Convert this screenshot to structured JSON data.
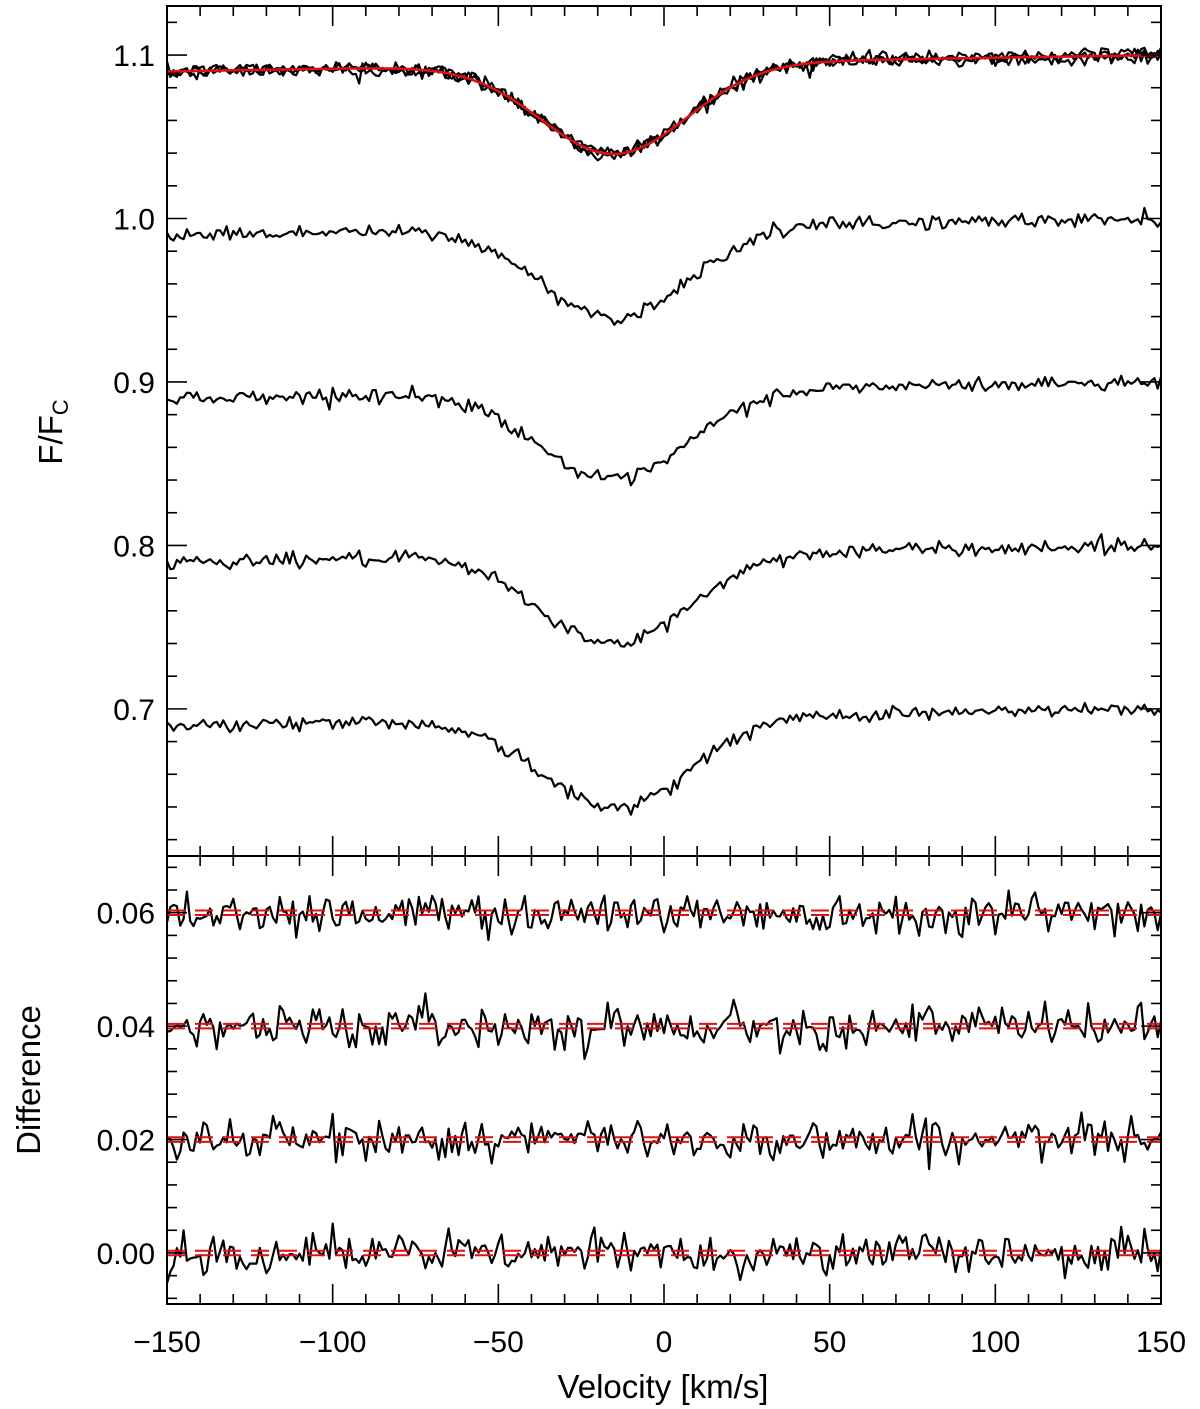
{
  "chart_data": [
    {
      "type": "line",
      "panel": "top",
      "ylabel": "F/F",
      "ylabel_subscript": "C",
      "xlim": [
        -150,
        150
      ],
      "ylim": [
        0.61,
        1.13
      ],
      "yticks": [
        0.7,
        0.8,
        0.9,
        1.0,
        1.1
      ],
      "ytick_labels": [
        "0.7",
        "0.8",
        "0.9",
        "1.0",
        "1.1"
      ],
      "profile": {
        "depth": 0.055,
        "center_kms": -15,
        "width_kms": 22,
        "left_wing": -0.01,
        "right_wing": 0.0,
        "noise": 0.0022
      },
      "series": [
        {
          "offset": 1.1,
          "n_overplot": 3,
          "model_color": "#dd1111"
        },
        {
          "offset": 1.0
        },
        {
          "offset": 0.9
        },
        {
          "offset": 0.8
        },
        {
          "offset": 0.7
        }
      ]
    },
    {
      "type": "line",
      "panel": "bottom",
      "ylabel": "Difference",
      "xlabel": "Velocity [km/s]",
      "xlim": [
        -150,
        150
      ],
      "ylim": [
        -0.009,
        0.07
      ],
      "xticks": [
        -150,
        -100,
        -50,
        0,
        50,
        100,
        150
      ],
      "xtick_labels": [
        "−150",
        "−100",
        "−50",
        "0",
        "50",
        "100",
        "150"
      ],
      "yticks": [
        0.0,
        0.02,
        0.04,
        0.06
      ],
      "ytick_labels": [
        "0.00",
        "0.02",
        "0.04",
        "0.06"
      ],
      "residual_noise": 0.0018,
      "series": [
        {
          "offset": 0.06,
          "band": 0.0004
        },
        {
          "offset": 0.04,
          "band": 0.0004
        },
        {
          "offset": 0.02,
          "band": 0.0004
        },
        {
          "offset": 0.0,
          "band": 0.0004
        }
      ],
      "band_color": "#dd1111"
    }
  ]
}
